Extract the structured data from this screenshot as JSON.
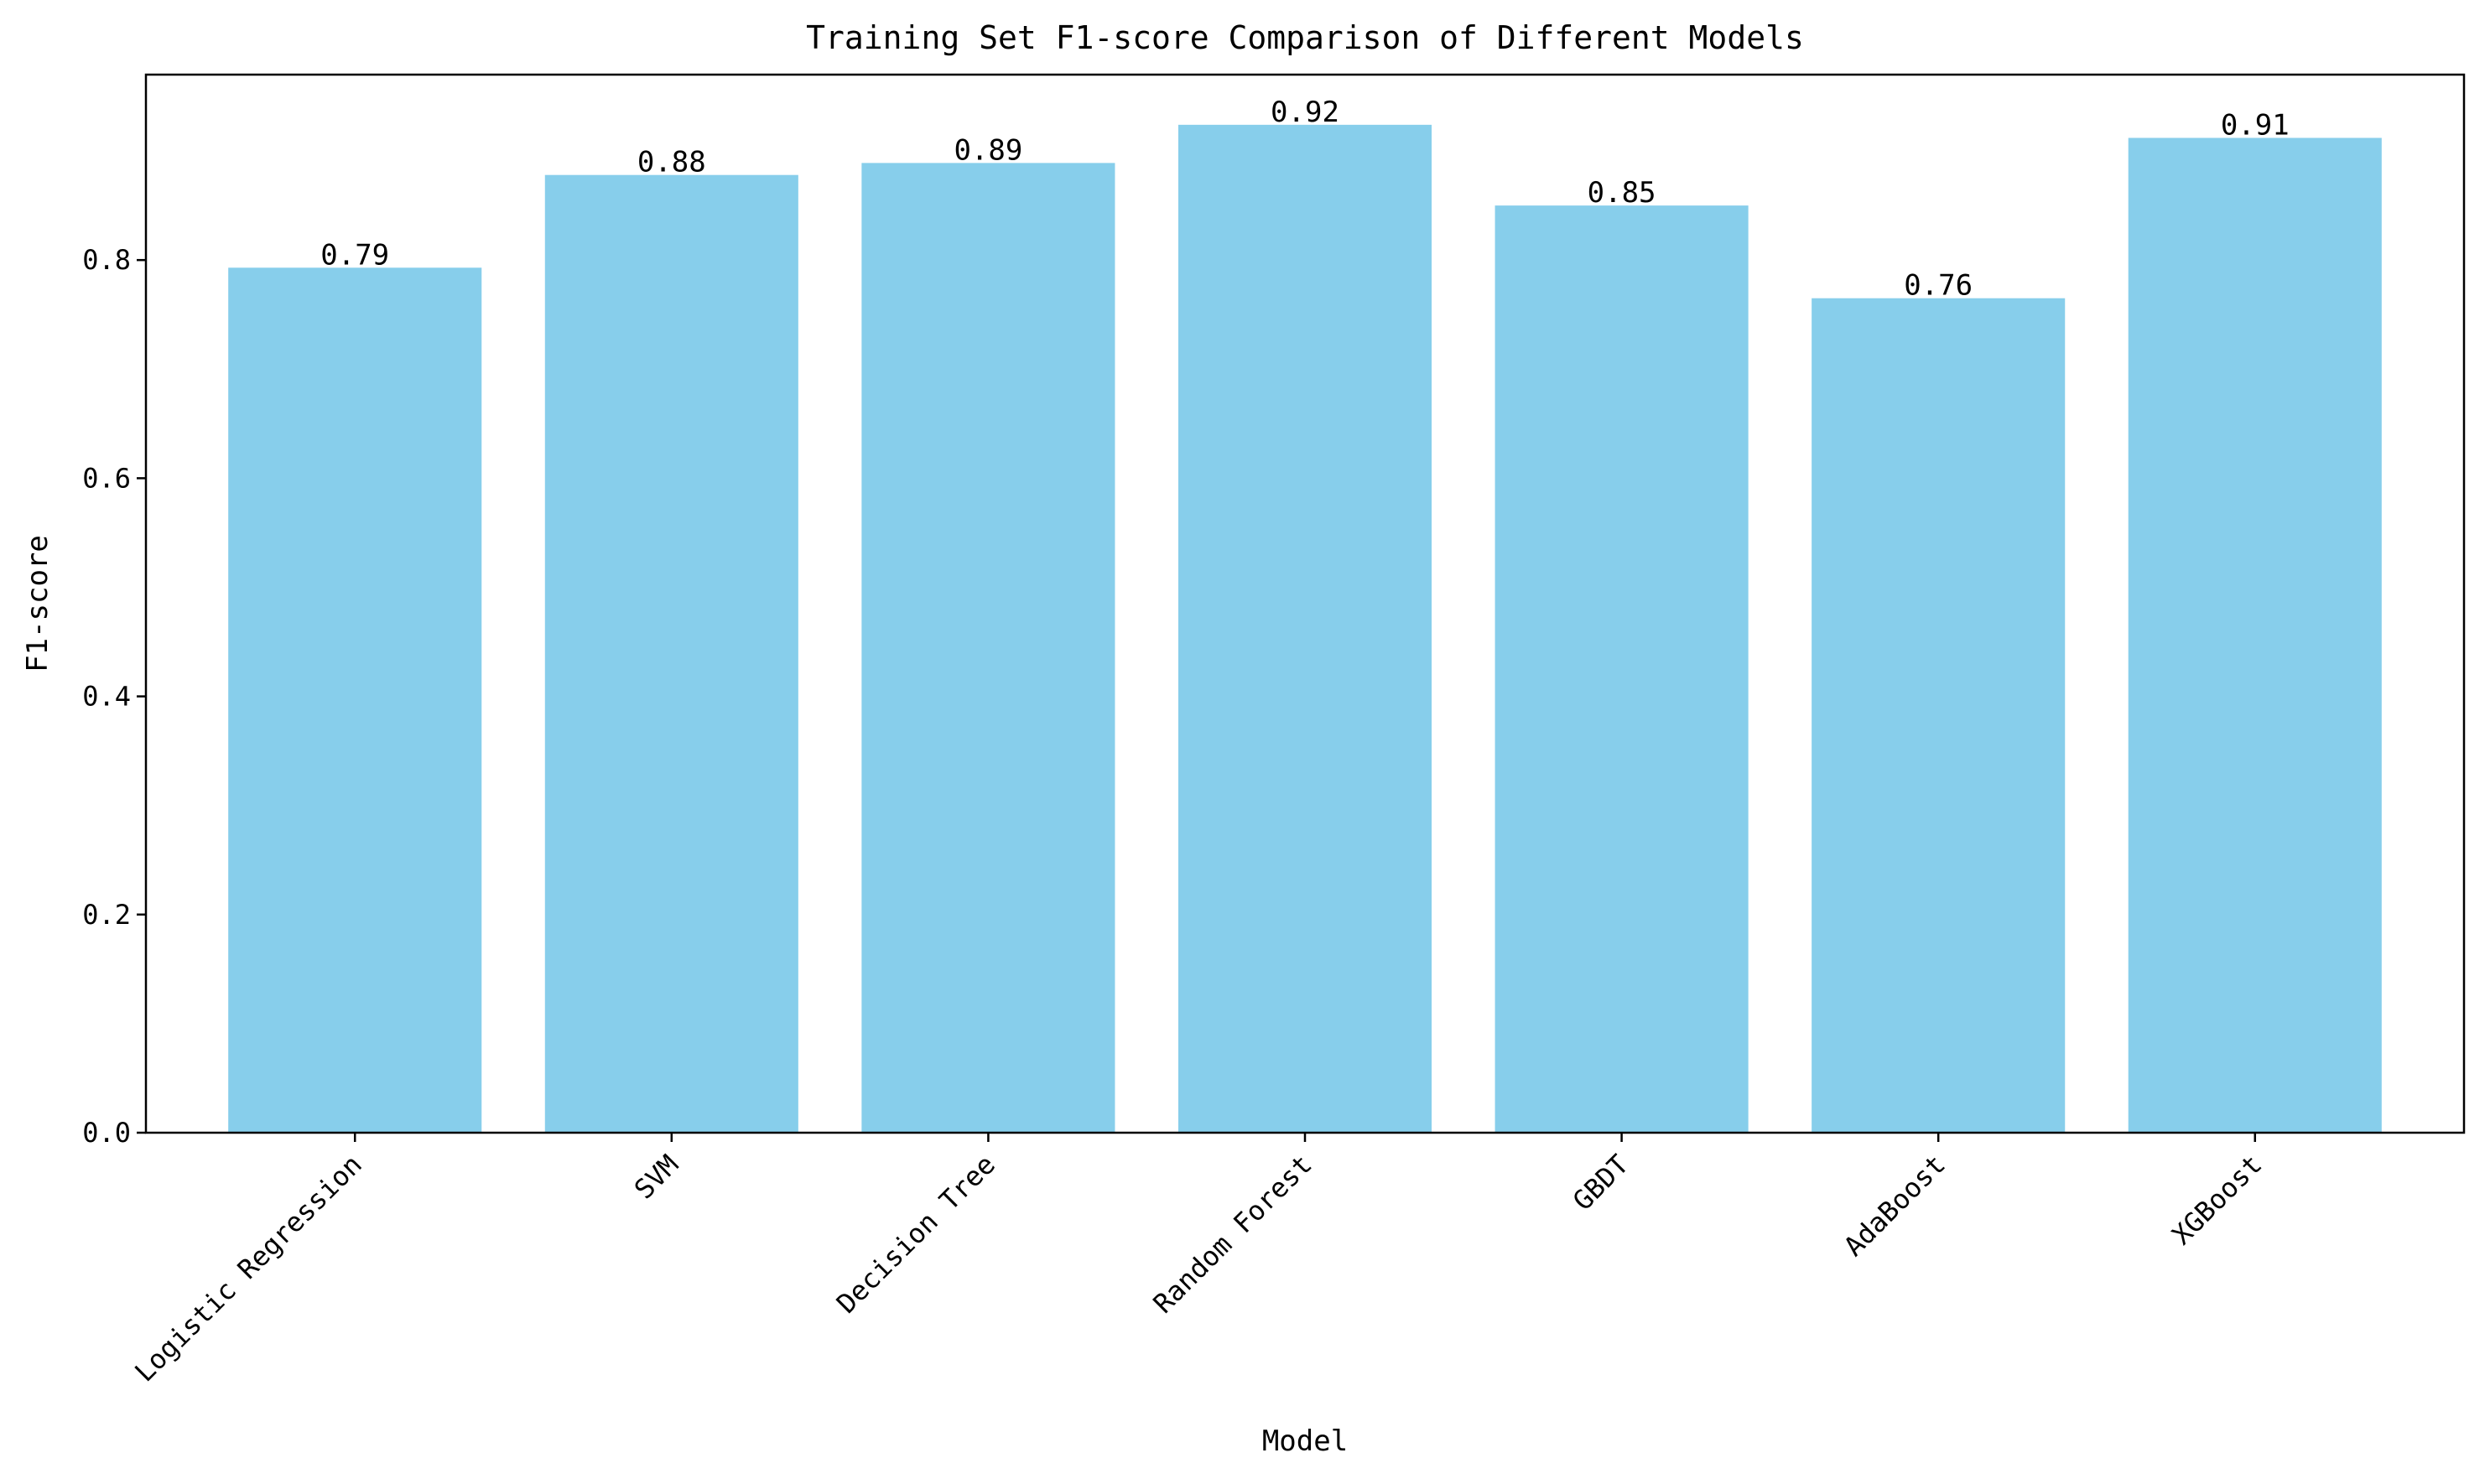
{
  "chart_data": {
    "type": "bar",
    "title": "Training Set F1-score Comparison of Different Models",
    "xlabel": "Model",
    "ylabel": "F1-score",
    "categories": [
      "Logistic Regression",
      "SVM",
      "Decision Tree",
      "Random Forest",
      "GBDT",
      "AdaBoost",
      "XGBoost"
    ],
    "values": [
      0.793,
      0.878,
      0.889,
      0.924,
      0.85,
      0.765,
      0.912
    ],
    "value_labels": [
      "0.79",
      "0.88",
      "0.89",
      "0.92",
      "0.85",
      "0.76",
      "0.91"
    ],
    "yticks": [
      "0.0",
      "0.2",
      "0.4",
      "0.6",
      "0.8"
    ],
    "ytick_values": [
      0.0,
      0.2,
      0.4,
      0.6,
      0.8
    ],
    "ylim": [
      0,
      0.97
    ],
    "grid": false,
    "legend": "none",
    "bar_color": "#87CEEB"
  }
}
